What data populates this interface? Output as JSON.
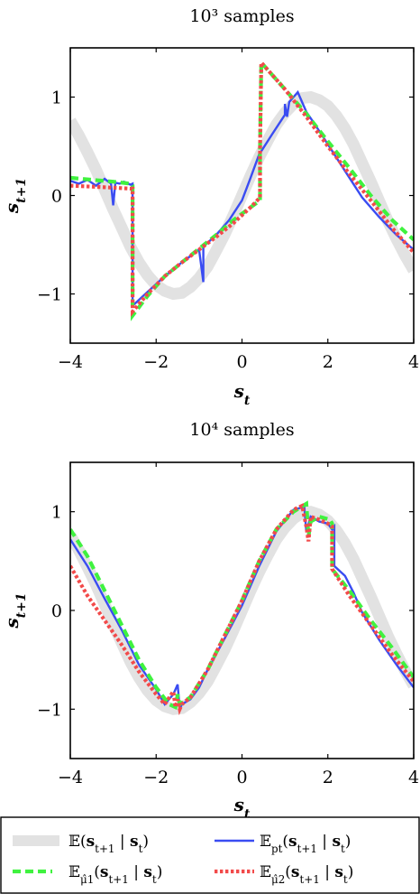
{
  "chart_data": [
    {
      "type": "line",
      "title": "10³ samples",
      "xlabel": "s_t",
      "ylabel": "s_{t+1}",
      "xlim": [
        -4,
        4
      ],
      "ylim": [
        -1.5,
        1.5
      ],
      "xticks": [
        -4,
        -2,
        0,
        2,
        4
      ],
      "yticks": [
        -1,
        0,
        1
      ],
      "grid": false,
      "series": [
        {
          "name": "𝔼(s_{t+1} | s_t)",
          "color": "#e2e2e2",
          "style": "thick-solid",
          "x": [
            -4,
            -3.8,
            -3.6,
            -3.4,
            -3.2,
            -3,
            -2.8,
            -2.6,
            -2.4,
            -2.2,
            -2,
            -1.8,
            -1.6,
            -1.4,
            -1.2,
            -1,
            -0.8,
            -0.6,
            -0.4,
            -0.2,
            0,
            0.2,
            0.4,
            0.6,
            0.8,
            1,
            1.2,
            1.4,
            1.6,
            1.8,
            2,
            2.2,
            2.4,
            2.6,
            2.8,
            3,
            3.2,
            3.4,
            3.6,
            3.8,
            4
          ],
          "y": [
            0.76,
            0.61,
            0.44,
            0.26,
            0.06,
            -0.14,
            -0.33,
            -0.52,
            -0.68,
            -0.81,
            -0.91,
            -0.97,
            -1.0,
            -0.99,
            -0.93,
            -0.84,
            -0.72,
            -0.56,
            -0.39,
            -0.2,
            0,
            0.2,
            0.39,
            0.56,
            0.72,
            0.84,
            0.93,
            0.99,
            1.0,
            0.97,
            0.91,
            0.81,
            0.68,
            0.52,
            0.33,
            0.14,
            -0.06,
            -0.26,
            -0.44,
            -0.61,
            -0.76
          ]
        },
        {
          "name": "𝔼_{p_t}(s_{t+1} | s_t)",
          "color": "#3a4cf2",
          "style": "solid",
          "x": [
            -4,
            -3.8,
            -3.6,
            -3.4,
            -3.2,
            -3.05,
            -3.0,
            -2.95,
            -2.85,
            -2.75,
            -2.6,
            -2.55,
            -2.55,
            -2.2,
            -1.8,
            -1.4,
            -1.0,
            -0.9,
            -0.9,
            -0.6,
            -0.3,
            0.0,
            0.2,
            0.4,
            0.45,
            0.7,
            1.0,
            1.0,
            1.05,
            1.1,
            1.3,
            1.5,
            1.7,
            2.0,
            2.4,
            2.8,
            3.2,
            3.6,
            4.0
          ],
          "y": [
            0.15,
            0.12,
            0.16,
            0.1,
            0.17,
            0.12,
            -0.1,
            0.13,
            0.12,
            0.14,
            0.11,
            0.12,
            -1.12,
            -0.98,
            -0.82,
            -0.68,
            -0.55,
            -0.88,
            -0.52,
            -0.4,
            -0.25,
            -0.05,
            0.18,
            0.42,
            0.45,
            0.62,
            0.82,
            0.93,
            0.8,
            0.95,
            1.05,
            0.85,
            0.72,
            0.52,
            0.25,
            -0.02,
            -0.22,
            -0.4,
            -0.55
          ]
        },
        {
          "name": "𝔼_{μ̂_1}(s_{t+1} | s_t)",
          "color": "#3ff23f",
          "style": "dashed",
          "x": [
            -4,
            -3.5,
            -3.0,
            -2.6,
            -2.55,
            -2.55,
            -2.2,
            -1.8,
            -1.4,
            -1.0,
            -0.6,
            -0.2,
            0.2,
            0.42,
            0.42,
            0.45,
            1.0,
            1.5,
            2.0,
            2.5,
            3.0,
            3.5,
            4.0
          ],
          "y": [
            0.18,
            0.16,
            0.14,
            0.12,
            0.1,
            -1.22,
            -1.02,
            -0.82,
            -0.68,
            -0.54,
            -0.4,
            -0.25,
            -0.12,
            -0.05,
            0.5,
            1.35,
            1.08,
            0.83,
            0.55,
            0.28,
            0.0,
            -0.25,
            -0.45
          ]
        },
        {
          "name": "𝔼_{μ̂_2}(s_{t+1} | s_t)",
          "color": "#f24a4a",
          "style": "dotted",
          "x": [
            -4,
            -3.5,
            -3.0,
            -2.6,
            -2.55,
            -2.55,
            -2.2,
            -1.8,
            -1.4,
            -1.0,
            -0.6,
            -0.2,
            0.2,
            0.42,
            0.42,
            0.45,
            1.0,
            1.5,
            2.0,
            2.5,
            3.0,
            3.5,
            4.0
          ],
          "y": [
            0.1,
            0.09,
            0.08,
            0.07,
            0.07,
            -1.18,
            -1.0,
            -0.82,
            -0.68,
            -0.55,
            -0.42,
            -0.28,
            -0.12,
            -0.02,
            0.45,
            1.35,
            1.08,
            0.8,
            0.5,
            0.22,
            -0.05,
            -0.33,
            -0.58
          ]
        }
      ]
    },
    {
      "type": "line",
      "title": "10⁴ samples",
      "xlabel": "s_t",
      "ylabel": "s_{t+1}",
      "xlim": [
        -4,
        4
      ],
      "ylim": [
        -1.5,
        1.5
      ],
      "xticks": [
        -4,
        -2,
        0,
        2,
        4
      ],
      "yticks": [
        -1,
        0,
        1
      ],
      "grid": false,
      "series": [
        {
          "name": "𝔼(s_{t+1} | s_t)",
          "color": "#e2e2e2",
          "style": "thick-solid",
          "x": [
            -4,
            -3.8,
            -3.6,
            -3.4,
            -3.2,
            -3,
            -2.8,
            -2.6,
            -2.4,
            -2.2,
            -2,
            -1.8,
            -1.6,
            -1.4,
            -1.2,
            -1,
            -0.8,
            -0.6,
            -0.4,
            -0.2,
            0,
            0.2,
            0.4,
            0.6,
            0.8,
            1,
            1.2,
            1.4,
            1.6,
            1.8,
            2,
            2.2,
            2.4,
            2.6,
            2.8,
            3,
            3.2,
            3.4,
            3.6,
            3.8,
            4
          ],
          "y": [
            0.76,
            0.61,
            0.44,
            0.26,
            0.06,
            -0.14,
            -0.33,
            -0.52,
            -0.68,
            -0.81,
            -0.91,
            -0.97,
            -1.0,
            -0.99,
            -0.93,
            -0.84,
            -0.72,
            -0.56,
            -0.39,
            -0.2,
            0,
            0.2,
            0.39,
            0.56,
            0.72,
            0.84,
            0.93,
            0.99,
            1.0,
            0.97,
            0.91,
            0.81,
            0.68,
            0.52,
            0.33,
            0.14,
            -0.06,
            -0.26,
            -0.44,
            -0.61,
            -0.76
          ]
        },
        {
          "name": "𝔼_{p_t}(s_{t+1} | s_t)",
          "color": "#3a4cf2",
          "style": "solid",
          "x": [
            -4,
            -3.6,
            -3.2,
            -2.8,
            -2.4,
            -2.0,
            -1.8,
            -1.6,
            -1.5,
            -1.45,
            -1.4,
            -1.2,
            -1.0,
            -0.8,
            -0.4,
            0.0,
            0.4,
            0.8,
            1.2,
            1.45,
            1.5,
            1.6,
            1.8,
            2.0,
            2.1,
            2.15,
            2.15,
            2.4,
            2.6,
            2.8,
            3.2,
            3.6,
            4.0
          ],
          "y": [
            0.72,
            0.45,
            0.12,
            -0.2,
            -0.55,
            -0.8,
            -0.95,
            -0.85,
            -0.75,
            -1.0,
            -0.95,
            -0.9,
            -0.78,
            -0.6,
            -0.28,
            0.05,
            0.45,
            0.8,
            1.02,
            1.05,
            0.8,
            0.95,
            0.9,
            0.88,
            0.82,
            0.85,
            0.45,
            0.35,
            0.18,
            -0.02,
            -0.3,
            -0.55,
            -0.78
          ]
        },
        {
          "name": "𝔼_{μ̂_1}(s_{t+1} | s_t)",
          "color": "#3ff23f",
          "style": "dashed",
          "x": [
            -4,
            -3.6,
            -3.2,
            -2.8,
            -2.4,
            -2.0,
            -1.7,
            -1.55,
            -1.5,
            -1.45,
            -1.2,
            -0.8,
            -0.4,
            0.0,
            0.4,
            0.8,
            1.2,
            1.5,
            1.55,
            1.6,
            1.8,
            2.05,
            2.1,
            2.1,
            2.5,
            3.0,
            3.5,
            4.0
          ],
          "y": [
            0.82,
            0.55,
            0.2,
            -0.15,
            -0.5,
            -0.78,
            -0.95,
            -0.98,
            -0.85,
            -0.95,
            -0.88,
            -0.6,
            -0.25,
            0.1,
            0.5,
            0.82,
            1.0,
            1.08,
            0.75,
            0.9,
            0.95,
            0.92,
            0.88,
            0.42,
            0.2,
            -0.1,
            -0.38,
            -0.68
          ]
        },
        {
          "name": "𝔼_{μ̂_2}(s_{t+1} | s_t)",
          "color": "#f24a4a",
          "style": "dotted",
          "x": [
            -4,
            -3.8,
            -3.6,
            -3.2,
            -2.8,
            -2.4,
            -2.0,
            -1.8,
            -1.6,
            -1.55,
            -1.5,
            -1.45,
            -1.4,
            -1.2,
            -0.8,
            -0.4,
            0.0,
            0.4,
            0.8,
            1.2,
            1.4,
            1.5,
            1.55,
            1.6,
            1.8,
            2.0,
            2.1,
            2.1,
            2.5,
            3.0,
            3.5,
            4.0
          ],
          "y": [
            0.45,
            0.3,
            0.15,
            -0.1,
            -0.35,
            -0.62,
            -0.85,
            -0.95,
            -0.82,
            -0.98,
            -0.9,
            -1.0,
            -0.95,
            -0.88,
            -0.6,
            -0.25,
            0.1,
            0.5,
            0.82,
            1.02,
            1.06,
            0.85,
            0.7,
            0.95,
            0.92,
            0.88,
            0.85,
            0.42,
            0.15,
            -0.15,
            -0.45,
            -0.72
          ]
        }
      ]
    }
  ],
  "legend": {
    "placement": "bottom",
    "entries": [
      {
        "label": "𝔼(s_{t+1} | s_t)"
      },
      {
        "label": "𝔼_{p_t}(s_{t+1} | s_t)"
      },
      {
        "label": "𝔼_{μ̂_1}(s_{t+1} | s_t)"
      },
      {
        "label": "𝔼_{μ̂_2}(s_{t+1} | s_t)"
      }
    ]
  }
}
